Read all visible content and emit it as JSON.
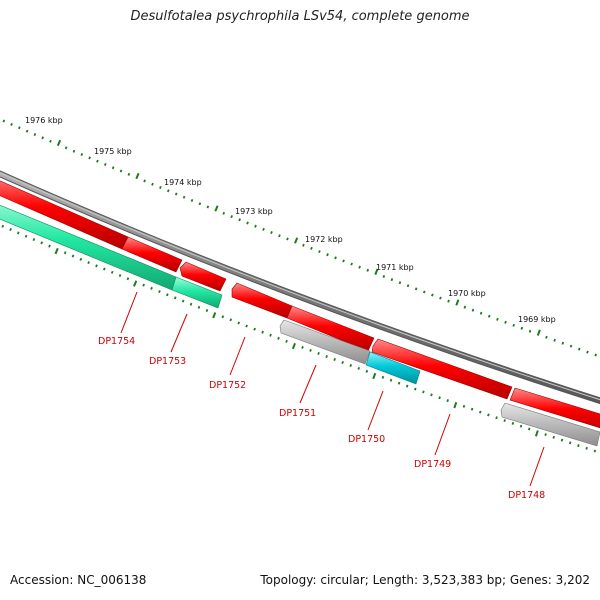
{
  "title": "Desulfotalea psychrophila LSv54, complete genome",
  "footer": {
    "accession": "Accession: NC_006138",
    "topology": "Topology: circular; Length: 3,523,383 bp; Genes: 3,202"
  },
  "colors": {
    "backbone": "#808080",
    "tick": "#1e7a1e",
    "forward_cds": "#ff0000",
    "reverse_cds": "#22e0a0",
    "rna_gene": "#00c8d8",
    "other_gene": "#b8b8b8",
    "label": "#d00000"
  },
  "ruler_labels": [
    "1976 kbp",
    "1975 kbp",
    "1974 kbp",
    "1973 kbp",
    "1972 kbp",
    "1971 kbp",
    "1970 kbp",
    "1969 kbp"
  ],
  "gene_labels": [
    "DP1754",
    "DP1753",
    "DP1752",
    "DP1751",
    "DP1750",
    "DP1749",
    "DP1748"
  ]
}
